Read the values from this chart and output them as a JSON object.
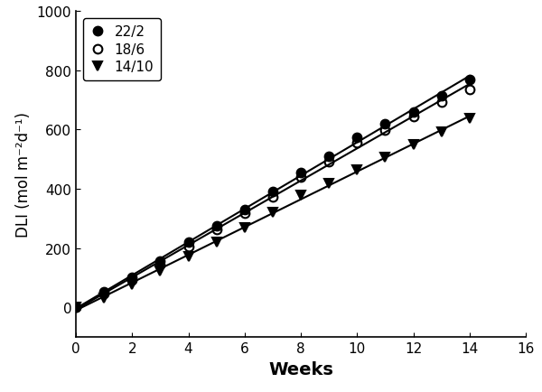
{
  "title": "",
  "xlabel": "Weeks",
  "ylabel": "DLI (mol m⁻²d⁻¹)",
  "xlim": [
    0,
    16
  ],
  "ylim": [
    -100,
    1000
  ],
  "xticks": [
    0,
    2,
    4,
    6,
    8,
    10,
    12,
    14,
    16
  ],
  "yticks": [
    0,
    200,
    400,
    600,
    800,
    1000
  ],
  "series": [
    {
      "label": "22/2",
      "marker": "o",
      "fillstyle": "full",
      "color": "black",
      "x": [
        0,
        1,
        2,
        3,
        4,
        5,
        6,
        7,
        8,
        9,
        10,
        11,
        12,
        13,
        14
      ],
      "y": [
        0,
        52,
        100,
        155,
        220,
        275,
        330,
        390,
        455,
        510,
        575,
        620,
        660,
        715,
        770
      ]
    },
    {
      "label": "18/6",
      "marker": "o",
      "fillstyle": "none",
      "color": "black",
      "x": [
        0,
        1,
        2,
        3,
        4,
        5,
        6,
        7,
        8,
        9,
        10,
        11,
        12,
        13,
        14
      ],
      "y": [
        0,
        47,
        93,
        143,
        205,
        262,
        318,
        374,
        440,
        490,
        555,
        598,
        643,
        693,
        735
      ]
    },
    {
      "label": "14/10",
      "marker": "v",
      "fillstyle": "full",
      "color": "black",
      "x": [
        0,
        1,
        2,
        3,
        4,
        5,
        6,
        7,
        8,
        9,
        10,
        11,
        12,
        13,
        14
      ],
      "y": [
        0,
        32,
        78,
        122,
        172,
        220,
        270,
        320,
        380,
        418,
        465,
        508,
        548,
        592,
        638
      ]
    }
  ],
  "legend_loc": "upper left",
  "background_color": "#ffffff",
  "marker_size": 7,
  "line_width": 1.5,
  "xlabel_fontsize": 14,
  "ylabel_fontsize": 12,
  "tick_fontsize": 11,
  "legend_fontsize": 11
}
